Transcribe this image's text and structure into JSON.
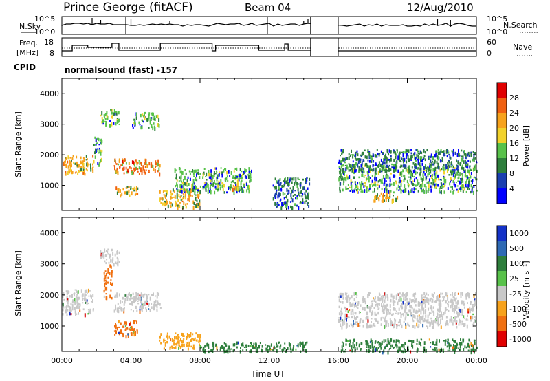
{
  "header": {
    "station": "Prince George (fitACF)",
    "beam": "Beam 04",
    "date": "12/Aug/2010"
  },
  "strips": {
    "nsky_label": "N.Sky",
    "nsky_ticks": [
      "10^5",
      "10^0"
    ],
    "nsearch_label": "N.Search",
    "nsearch_ticks": [
      "10^5",
      "10^0"
    ],
    "freq_label_1": "Freq.",
    "freq_label_2": "[MHz]",
    "freq_ticks": [
      "18",
      "8"
    ],
    "nave_label": "Nave",
    "nave_ticks": [
      "60",
      "0"
    ],
    "cpid_label": "CPID",
    "cpid_text": "normalsound (fast) -157"
  },
  "colors": {
    "power_scale": [
      "#0000ff",
      "#1a3fb0",
      "#2e7f3c",
      "#58c24a",
      "#f2d22a",
      "#f7a21b",
      "#f06010",
      "#e00000"
    ],
    "velocity_scale": [
      "#1432c8",
      "#2e6ab4",
      "#2e7f3c",
      "#58c24a",
      "#c8c8c8",
      "#f7a21b",
      "#f07010",
      "#e00000"
    ],
    "grey_scatter": "#c8c8c8"
  },
  "chart_data": [
    {
      "type": "heatmap",
      "title": "",
      "xlabel": "Time UT",
      "ylabel": "Slant Range [km]",
      "x_ticks": [
        "00:00",
        "04:00",
        "08:00",
        "12:00",
        "16:00",
        "20:00",
        "00:00"
      ],
      "xlim_hours": [
        0,
        24
      ],
      "y_ticks": [
        "4000",
        "3000",
        "2000",
        "1000"
      ],
      "ylim_km": [
        180,
        4500
      ],
      "no_data_interval_hours": [
        14.4,
        16.0
      ],
      "colorbar_label": "Power [dB]",
      "colorbar_ticks": [
        "28",
        "24",
        "20",
        "16",
        "12",
        "8",
        "4"
      ],
      "colorbar_range": [
        0,
        30
      ],
      "echo_regions": [
        {
          "t0": 0.0,
          "t1": 1.8,
          "r0": 1400,
          "r1": 2000,
          "level": 20
        },
        {
          "t0": 1.8,
          "t1": 2.3,
          "r0": 1700,
          "r1": 2600,
          "level": 14
        },
        {
          "t0": 2.2,
          "t1": 3.3,
          "r0": 3000,
          "r1": 3500,
          "level": 12
        },
        {
          "t0": 3.0,
          "t1": 5.7,
          "r0": 1400,
          "r1": 1900,
          "level": 24
        },
        {
          "t0": 3.0,
          "t1": 4.4,
          "r0": 700,
          "r1": 1000,
          "level": 22
        },
        {
          "t0": 4.0,
          "t1": 5.6,
          "r0": 2900,
          "r1": 3400,
          "level": 14
        },
        {
          "t0": 5.6,
          "t1": 8.0,
          "r0": 300,
          "r1": 900,
          "level": 20
        },
        {
          "t0": 6.5,
          "t1": 11.0,
          "r0": 800,
          "r1": 1600,
          "level": 12
        },
        {
          "t0": 9.8,
          "t1": 10.2,
          "r0": 900,
          "r1": 1300,
          "level": 20
        },
        {
          "t0": 12.2,
          "t1": 14.3,
          "r0": 300,
          "r1": 1300,
          "level": 10
        },
        {
          "t0": 16.0,
          "t1": 24.0,
          "r0": 800,
          "r1": 1700,
          "level": 14
        },
        {
          "t0": 16.0,
          "t1": 24.0,
          "r0": 1500,
          "r1": 2200,
          "level": 10
        },
        {
          "t0": 18.0,
          "t1": 19.5,
          "r0": 500,
          "r1": 800,
          "level": 22
        }
      ]
    },
    {
      "type": "heatmap",
      "title": "",
      "xlabel": "Time UT",
      "ylabel": "Slant Range [km]",
      "x_ticks": [
        "00:00",
        "04:00",
        "08:00",
        "12:00",
        "16:00",
        "20:00",
        "00:00"
      ],
      "xlim_hours": [
        0,
        24
      ],
      "y_ticks": [
        "4000",
        "3000",
        "2000",
        "1000"
      ],
      "ylim_km": [
        180,
        4500
      ],
      "no_data_interval_hours": [
        14.4,
        16.0
      ],
      "colorbar_label": "Velocity [m s⁻¹]",
      "colorbar_ticks": [
        "1000",
        "500",
        "100",
        "25",
        "-25",
        "-100",
        "-500",
        "-1000"
      ],
      "echo_regions": [
        {
          "t0": 0.0,
          "t1": 1.8,
          "r0": 1400,
          "r1": 2200,
          "velocity": 0
        },
        {
          "t0": 2.2,
          "t1": 3.3,
          "r0": 3000,
          "r1": 3500,
          "velocity": 0
        },
        {
          "t0": 2.4,
          "t1": 2.9,
          "r0": 1900,
          "r1": 3000,
          "velocity": -500
        },
        {
          "t0": 3.0,
          "t1": 4.4,
          "r0": 700,
          "r1": 1200,
          "velocity": -500
        },
        {
          "t0": 3.0,
          "t1": 5.7,
          "r0": 1500,
          "r1": 2100,
          "velocity": 0
        },
        {
          "t0": 5.6,
          "t1": 8.0,
          "r0": 300,
          "r1": 800,
          "velocity": -100
        },
        {
          "t0": 8.0,
          "t1": 14.3,
          "r0": 200,
          "r1": 500,
          "velocity": 100
        },
        {
          "t0": 16.0,
          "t1": 24.0,
          "r0": 1000,
          "r1": 2100,
          "velocity": 0
        },
        {
          "t0": 16.0,
          "t1": 24.0,
          "r0": 200,
          "r1": 600,
          "velocity": 100
        }
      ]
    }
  ]
}
